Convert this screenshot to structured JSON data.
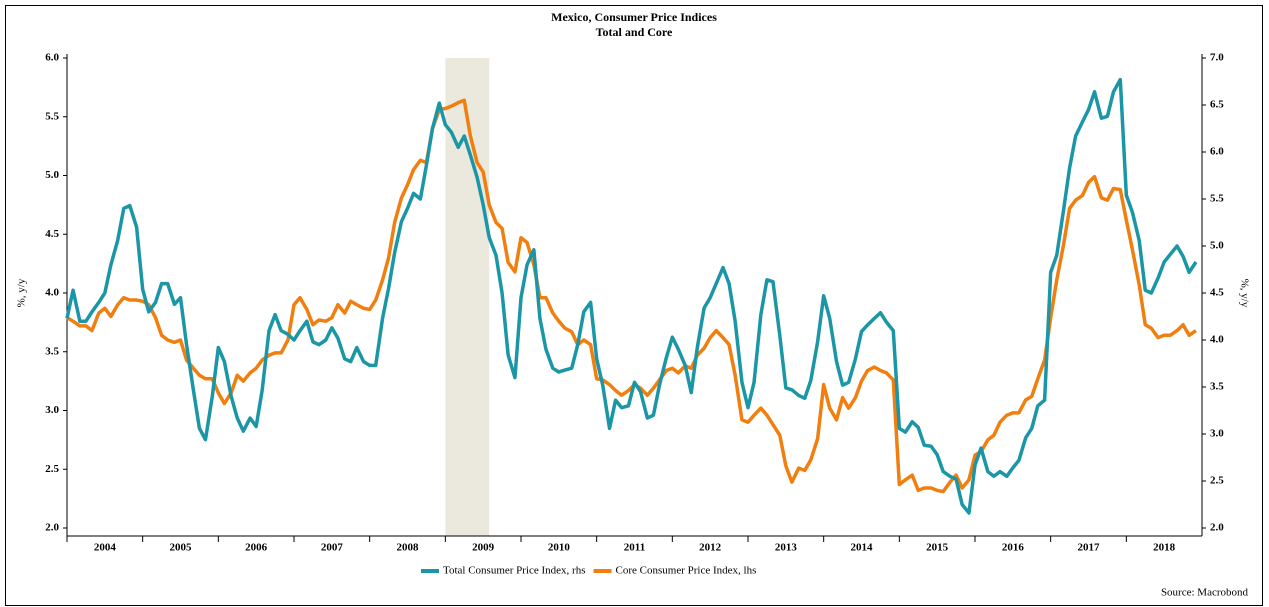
{
  "chart_data": {
    "type": "line",
    "title": "Mexico, Consumer Price Indices",
    "subtitle": "Total and Core",
    "ylabel": "%, y/y",
    "y2label": "%, y/y",
    "source": "Source: Macrobond",
    "xlim": [
      2004,
      2019
    ],
    "xticks": [
      2004,
      2005,
      2006,
      2007,
      2008,
      2009,
      2010,
      2011,
      2012,
      2013,
      2014,
      2015,
      2016,
      2017,
      2018
    ],
    "ylim": [
      2,
      6
    ],
    "yticks": [
      {
        "value": 2,
        "label": "2.0"
      },
      2.5,
      {
        "value": 3,
        "label": "3.0"
      },
      3.5,
      {
        "value": 4,
        "label": "4.0"
      },
      4.5,
      {
        "value": 5,
        "label": "5.0"
      },
      5.5,
      {
        "value": 6,
        "label": "6.0"
      }
    ],
    "y2lim": [
      2,
      7
    ],
    "y2ticks": [
      {
        "value": 2,
        "label": "2.0"
      },
      2.5,
      {
        "value": 3,
        "label": "3.0"
      },
      3.5,
      {
        "value": 4,
        "label": "4.0"
      },
      4.5,
      {
        "value": 5,
        "label": "5.0"
      },
      5.5,
      {
        "value": 6,
        "label": "6.0"
      },
      6.5,
      {
        "value": 7,
        "label": "7.0"
      }
    ],
    "shaded_periods": [
      [
        2009.0,
        2009.58
      ]
    ],
    "shade_color": "#ebe8dd",
    "x": [
      2004,
      2004.08,
      2004.17,
      2004.25,
      2004.33,
      2004.42,
      2004.5,
      2004.58,
      2004.67,
      2004.75,
      2004.83,
      2004.92,
      2005,
      2005.08,
      2005.17,
      2005.25,
      2005.33,
      2005.42,
      2005.5,
      2005.58,
      2005.67,
      2005.75,
      2005.83,
      2005.92,
      2006,
      2006.08,
      2006.17,
      2006.25,
      2006.33,
      2006.42,
      2006.5,
      2006.58,
      2006.67,
      2006.75,
      2006.83,
      2006.92,
      2007,
      2007.08,
      2007.17,
      2007.25,
      2007.33,
      2007.42,
      2007.5,
      2007.58,
      2007.67,
      2007.75,
      2007.83,
      2007.92,
      2008,
      2008.08,
      2008.17,
      2008.25,
      2008.33,
      2008.42,
      2008.5,
      2008.58,
      2008.67,
      2008.75,
      2008.83,
      2008.92,
      2009,
      2009.08,
      2009.17,
      2009.25,
      2009.33,
      2009.42,
      2009.5,
      2009.58,
      2009.67,
      2009.75,
      2009.83,
      2009.92,
      2010,
      2010.08,
      2010.17,
      2010.25,
      2010.33,
      2010.42,
      2010.5,
      2010.58,
      2010.67,
      2010.75,
      2010.83,
      2010.92,
      2011,
      2011.08,
      2011.17,
      2011.25,
      2011.33,
      2011.42,
      2011.5,
      2011.58,
      2011.67,
      2011.75,
      2011.83,
      2011.92,
      2012,
      2012.08,
      2012.17,
      2012.25,
      2012.33,
      2012.42,
      2012.5,
      2012.58,
      2012.67,
      2012.75,
      2012.83,
      2012.92,
      2013,
      2013.08,
      2013.17,
      2013.25,
      2013.33,
      2013.42,
      2013.5,
      2013.58,
      2013.67,
      2013.75,
      2013.83,
      2013.92,
      2014,
      2014.08,
      2014.17,
      2014.25,
      2014.33,
      2014.42,
      2014.5,
      2014.58,
      2014.67,
      2014.75,
      2014.83,
      2014.92,
      2015,
      2015.08,
      2015.17,
      2015.25,
      2015.33,
      2015.42,
      2015.5,
      2015.58,
      2015.67,
      2015.75,
      2015.83,
      2015.92,
      2016,
      2016.08,
      2016.17,
      2016.25,
      2016.33,
      2016.42,
      2016.5,
      2016.58,
      2016.67,
      2016.75,
      2016.83,
      2016.92,
      2017,
      2017.08,
      2017.17,
      2017.25,
      2017.33,
      2017.42,
      2017.5,
      2017.58,
      2017.67,
      2017.75,
      2017.83,
      2017.92,
      2018,
      2018.08,
      2018.17,
      2018.25,
      2018.33,
      2018.42,
      2018.5,
      2018.58,
      2018.67,
      2018.75,
      2018.83,
      2018.92
    ],
    "series": [
      {
        "name": "Total Consumer Price Index, rhs",
        "color": "#1a96a6",
        "axis": "y2",
        "values": [
          4.23,
          4.53,
          4.2,
          4.2,
          4.3,
          4.4,
          4.5,
          4.8,
          5.06,
          5.4,
          5.43,
          5.2,
          4.54,
          4.3,
          4.4,
          4.6,
          4.6,
          4.38,
          4.45,
          3.95,
          3.47,
          3.06,
          2.94,
          3.4,
          3.92,
          3.77,
          3.4,
          3.17,
          3.03,
          3.17,
          3.08,
          3.47,
          4.1,
          4.27,
          4.1,
          4.06,
          4.0,
          4.1,
          4.2,
          3.98,
          3.95,
          4.0,
          4.13,
          4.02,
          3.8,
          3.77,
          3.92,
          3.77,
          3.73,
          3.73,
          4.23,
          4.55,
          4.93,
          5.26,
          5.4,
          5.56,
          5.5,
          5.86,
          6.25,
          6.52,
          6.29,
          6.21,
          6.05,
          6.17,
          5.97,
          5.73,
          5.44,
          5.09,
          4.9,
          4.5,
          3.84,
          3.6,
          4.45,
          4.8,
          4.96,
          4.23,
          3.9,
          3.7,
          3.66,
          3.68,
          3.7,
          3.95,
          4.3,
          4.4,
          3.8,
          3.52,
          3.06,
          3.36,
          3.28,
          3.3,
          3.55,
          3.45,
          3.17,
          3.2,
          3.52,
          3.81,
          4.03,
          3.9,
          3.73,
          3.44,
          3.92,
          4.34,
          4.45,
          4.6,
          4.77,
          4.6,
          4.2,
          3.55,
          3.28,
          3.55,
          4.27,
          4.64,
          4.62,
          4.05,
          3.49,
          3.47,
          3.41,
          3.38,
          3.57,
          3.98,
          4.47,
          4.23,
          3.77,
          3.52,
          3.55,
          3.8,
          4.09,
          4.16,
          4.23,
          4.29,
          4.19,
          4.1,
          3.06,
          3.02,
          3.13,
          3.07,
          2.88,
          2.87,
          2.78,
          2.6,
          2.55,
          2.52,
          2.25,
          2.16,
          2.67,
          2.85,
          2.6,
          2.55,
          2.6,
          2.55,
          2.64,
          2.72,
          2.96,
          3.06,
          3.3,
          3.36,
          4.72,
          4.9,
          5.38,
          5.83,
          6.17,
          6.32,
          6.45,
          6.64,
          6.36,
          6.38,
          6.64,
          6.77,
          5.54,
          5.36,
          5.06,
          4.53,
          4.5,
          4.66,
          4.83,
          4.91,
          5.0,
          4.89,
          4.72,
          4.83
        ]
      },
      {
        "name": "Core Consumer Price Index, lhs",
        "color": "#f07f0f",
        "values": [
          3.79,
          3.76,
          3.72,
          3.72,
          3.68,
          3.83,
          3.87,
          3.8,
          3.9,
          3.96,
          3.94,
          3.94,
          3.93,
          3.9,
          3.79,
          3.64,
          3.6,
          3.58,
          3.6,
          3.43,
          3.36,
          3.3,
          3.27,
          3.27,
          3.15,
          3.06,
          3.15,
          3.3,
          3.25,
          3.32,
          3.36,
          3.43,
          3.47,
          3.49,
          3.49,
          3.6,
          3.9,
          3.96,
          3.86,
          3.73,
          3.77,
          3.76,
          3.79,
          3.9,
          3.83,
          3.93,
          3.9,
          3.87,
          3.86,
          3.94,
          4.11,
          4.3,
          4.6,
          4.81,
          4.92,
          5.05,
          5.13,
          5.11,
          5.4,
          5.56,
          5.57,
          5.59,
          5.62,
          5.64,
          5.34,
          5.11,
          5.03,
          4.75,
          4.6,
          4.55,
          4.26,
          4.18,
          4.47,
          4.43,
          4.24,
          3.96,
          3.96,
          3.83,
          3.76,
          3.7,
          3.67,
          3.56,
          3.6,
          3.56,
          3.27,
          3.26,
          3.22,
          3.17,
          3.13,
          3.17,
          3.22,
          3.19,
          3.13,
          3.19,
          3.26,
          3.34,
          3.36,
          3.32,
          3.38,
          3.36,
          3.47,
          3.53,
          3.62,
          3.68,
          3.62,
          3.56,
          3.3,
          2.92,
          2.9,
          2.96,
          3.02,
          2.96,
          2.88,
          2.79,
          2.53,
          2.39,
          2.51,
          2.49,
          2.58,
          2.76,
          3.22,
          3.02,
          2.92,
          3.11,
          3.02,
          3.11,
          3.25,
          3.34,
          3.37,
          3.34,
          3.32,
          3.26,
          2.37,
          2.41,
          2.45,
          2.32,
          2.34,
          2.34,
          2.32,
          2.31,
          2.39,
          2.45,
          2.34,
          2.41,
          2.62,
          2.65,
          2.75,
          2.79,
          2.9,
          2.96,
          2.98,
          2.98,
          3.09,
          3.12,
          3.27,
          3.43,
          3.79,
          4.11,
          4.41,
          4.72,
          4.79,
          4.83,
          4.94,
          4.99,
          4.81,
          4.79,
          4.89,
          4.88,
          4.62,
          4.37,
          4.07,
          3.73,
          3.7,
          3.62,
          3.64,
          3.64,
          3.68,
          3.73,
          3.64,
          3.68
        ]
      }
    ]
  }
}
